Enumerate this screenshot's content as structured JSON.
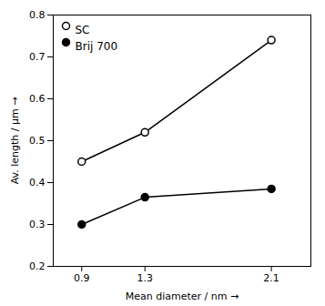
{
  "chart_data": {
    "type": "line",
    "x": [
      0.9,
      1.3,
      2.1
    ],
    "series": [
      {
        "name": "SC",
        "color": "black",
        "marker": "circle_open",
        "values": [
          0.45,
          0.52,
          0.74
        ]
      },
      {
        "name": "Brij 700",
        "color": "black",
        "marker": "circle",
        "values": [
          0.3,
          0.365,
          0.385
        ]
      }
    ],
    "xlabel": "Mean diameter / nm",
    "ylabel": "Av. length / μm",
    "xlim": [
      0.72,
      2.35
    ],
    "ylim": [
      0.2,
      0.8
    ],
    "xticks": [
      0.9,
      1.3,
      2.1
    ],
    "yticks": [
      0.2,
      0.3,
      0.4,
      0.5,
      0.6,
      0.7,
      0.8
    ],
    "grid": false,
    "legend": "upper left"
  }
}
